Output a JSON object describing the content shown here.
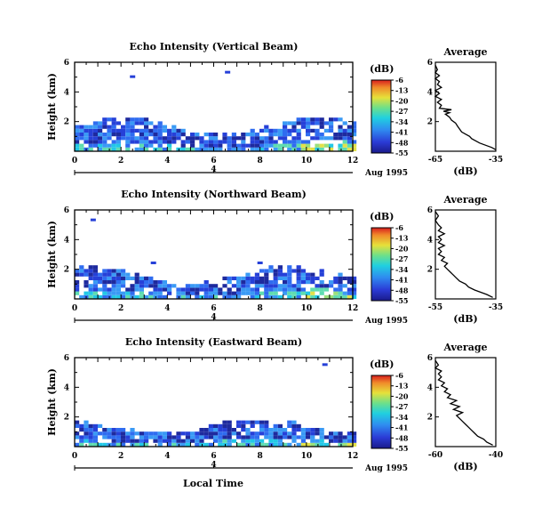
{
  "figure": {
    "xlabel": "Local Time",
    "date_label": "Aug 1995",
    "colorbar_unit": "(dB)",
    "average_title": "Average",
    "average_xlabel": "(dB)"
  },
  "chart_data": [
    {
      "type": "heatmap",
      "title": "Echo Intensity (Vertical Beam)",
      "ylabel": "Height (km)",
      "xlim": [
        0,
        12
      ],
      "ylim": [
        0,
        6
      ],
      "xticks": [
        0,
        2,
        4,
        6,
        8,
        10,
        12
      ],
      "yticks": [
        2,
        4,
        6
      ],
      "colorbar": {
        "ticks": [
          -6,
          -13,
          -20,
          -27,
          -34,
          -41,
          -48,
          -55
        ],
        "range": [
          -55,
          -6
        ]
      },
      "layer_top_km": 2.2,
      "features": [
        {
          "x": 2.5,
          "y": 5.0
        },
        {
          "x": 6.6,
          "y": 5.3
        }
      ],
      "average_profile": {
        "xlim": [
          -65,
          -35
        ],
        "xticks": [
          -65,
          -35
        ],
        "yticks": [
          2,
          4,
          6
        ],
        "points": [
          [
            -35,
            0.1
          ],
          [
            -37,
            0.25
          ],
          [
            -40,
            0.4
          ],
          [
            -43,
            0.55
          ],
          [
            -45,
            0.7
          ],
          [
            -47,
            0.85
          ],
          [
            -48,
            1.0
          ],
          [
            -50,
            1.15
          ],
          [
            -52,
            1.3
          ],
          [
            -53,
            1.5
          ],
          [
            -54,
            1.7
          ],
          [
            -55,
            1.9
          ],
          [
            -57,
            2.1
          ],
          [
            -58,
            2.3
          ],
          [
            -60,
            2.5
          ],
          [
            -58,
            2.6
          ],
          [
            -61,
            2.7
          ],
          [
            -57,
            2.8
          ],
          [
            -63,
            2.9
          ],
          [
            -62,
            3.1
          ],
          [
            -64,
            3.3
          ],
          [
            -62,
            3.5
          ],
          [
            -65,
            3.7
          ],
          [
            -63,
            3.9
          ],
          [
            -65,
            4.1
          ],
          [
            -62,
            4.3
          ],
          [
            -64,
            4.5
          ],
          [
            -63,
            4.7
          ],
          [
            -65,
            4.9
          ],
          [
            -63,
            5.1
          ],
          [
            -65,
            5.3
          ],
          [
            -64,
            5.5
          ],
          [
            -65,
            5.8
          ]
        ]
      }
    },
    {
      "type": "heatmap",
      "title": "Echo Intensity (Northward Beam)",
      "ylabel": "Height (km)",
      "xlim": [
        0,
        12
      ],
      "ylim": [
        0,
        6
      ],
      "xticks": [
        0,
        2,
        4,
        6,
        8,
        10,
        12
      ],
      "yticks": [
        2,
        4,
        6
      ],
      "colorbar": {
        "ticks": [
          -6,
          -13,
          -20,
          -27,
          -34,
          -41,
          -48,
          -55
        ],
        "range": [
          -55,
          -6
        ]
      },
      "layer_top_km": 2.1,
      "features": [
        {
          "x": 0.8,
          "y": 5.3
        },
        {
          "x": 3.4,
          "y": 2.4
        },
        {
          "x": 8.0,
          "y": 2.4
        }
      ],
      "average_profile": {
        "xlim": [
          -55,
          -35
        ],
        "xticks": [
          -55,
          -35
        ],
        "yticks": [
          2,
          4,
          6
        ],
        "points": [
          [
            -36,
            0.1
          ],
          [
            -38,
            0.3
          ],
          [
            -40,
            0.45
          ],
          [
            -42,
            0.6
          ],
          [
            -44,
            0.8
          ],
          [
            -45,
            1.0
          ],
          [
            -47,
            1.2
          ],
          [
            -48,
            1.4
          ],
          [
            -49,
            1.6
          ],
          [
            -50,
            1.8
          ],
          [
            -51,
            2.0
          ],
          [
            -52,
            2.2
          ],
          [
            -51,
            2.4
          ],
          [
            -53,
            2.6
          ],
          [
            -52,
            2.8
          ],
          [
            -54,
            3.0
          ],
          [
            -53,
            3.2
          ],
          [
            -54,
            3.4
          ],
          [
            -52,
            3.6
          ],
          [
            -54,
            3.8
          ],
          [
            -53,
            4.0
          ],
          [
            -54,
            4.2
          ],
          [
            -52,
            4.4
          ],
          [
            -54,
            4.6
          ],
          [
            -53,
            4.8
          ],
          [
            -54,
            5.0
          ],
          [
            -55,
            5.3
          ],
          [
            -54,
            5.6
          ],
          [
            -55,
            5.9
          ]
        ]
      }
    },
    {
      "type": "heatmap",
      "title": "Echo Intensity (Eastward Beam)",
      "ylabel": "Height (km)",
      "xlim": [
        0,
        12
      ],
      "ylim": [
        0,
        6
      ],
      "xticks": [
        0,
        2,
        4,
        6,
        8,
        10,
        12
      ],
      "yticks": [
        2,
        4,
        6
      ],
      "colorbar": {
        "ticks": [
          -6,
          -13,
          -20,
          -27,
          -34,
          -41,
          -48,
          -55
        ],
        "range": [
          -55,
          -6
        ]
      },
      "layer_top_km": 1.8,
      "features": [
        {
          "x": 10.8,
          "y": 5.5
        }
      ],
      "average_profile": {
        "xlim": [
          -60,
          -40
        ],
        "xticks": [
          -60,
          -40
        ],
        "yticks": [
          2,
          4,
          6
        ],
        "points": [
          [
            -41,
            0.1
          ],
          [
            -43,
            0.3
          ],
          [
            -44,
            0.5
          ],
          [
            -46,
            0.7
          ],
          [
            -47,
            0.9
          ],
          [
            -48,
            1.1
          ],
          [
            -49,
            1.3
          ],
          [
            -50,
            1.5
          ],
          [
            -51,
            1.7
          ],
          [
            -52,
            1.9
          ],
          [
            -53,
            2.1
          ],
          [
            -51,
            2.3
          ],
          [
            -54,
            2.5
          ],
          [
            -52,
            2.7
          ],
          [
            -55,
            2.9
          ],
          [
            -53,
            3.1
          ],
          [
            -56,
            3.3
          ],
          [
            -55,
            3.5
          ],
          [
            -57,
            3.7
          ],
          [
            -56,
            3.9
          ],
          [
            -58,
            4.1
          ],
          [
            -57,
            4.3
          ],
          [
            -59,
            4.5
          ],
          [
            -58,
            4.7
          ],
          [
            -59,
            4.9
          ],
          [
            -58,
            5.1
          ],
          [
            -60,
            5.3
          ],
          [
            -59,
            5.5
          ],
          [
            -60,
            5.8
          ]
        ]
      }
    }
  ]
}
